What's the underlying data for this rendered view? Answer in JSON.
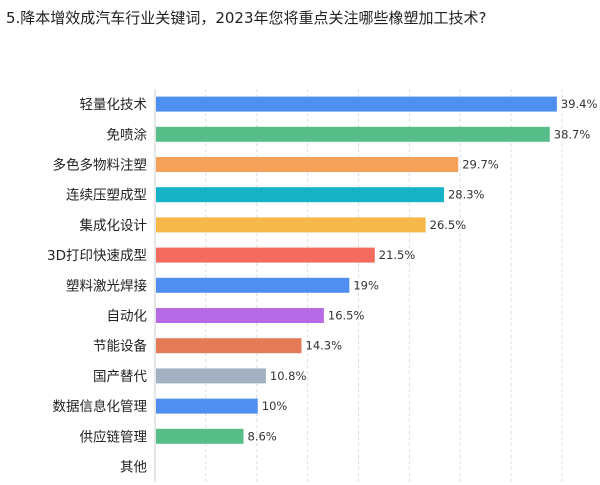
{
  "question": "5.降本增效成汽车行业关键词，2023年您将重点关注哪些橡塑加工技术?",
  "chart_data": {
    "type": "bar",
    "orientation": "horizontal",
    "title": "5.降本增效成汽车行业关键词，2023年您将重点关注哪些橡塑加工技术?",
    "categories": [
      "轻量化技术",
      "免喷涂",
      "多色多物料注塑",
      "连续压塑成型",
      "集成化设计",
      "3D打印快速成型",
      "塑料激光焊接",
      "自动化",
      "节能设备",
      "国产替代",
      "数据信息化管理",
      "供应链管理",
      "其他"
    ],
    "values": [
      39.4,
      38.7,
      29.7,
      28.3,
      26.5,
      21.5,
      19,
      16.5,
      14.3,
      10.8,
      10,
      8.6,
      null
    ],
    "value_labels": [
      "39.4%",
      "38.7%",
      "29.7%",
      "28.3%",
      "26.5%",
      "21.5%",
      "19%",
      "16.5%",
      "14.3%",
      "10.8%",
      "10%",
      "8.6%",
      ""
    ],
    "unit": "%",
    "colors": [
      "#4f8ff0",
      "#57be8a",
      "#f5a15a",
      "#17b2c6",
      "#f6b84a",
      "#f26b5e",
      "#4f8ff0",
      "#b66ae6",
      "#e57a59",
      "#a4b1c2",
      "#4f8ff0",
      "#57be8a",
      "#4f8ff0"
    ],
    "xlim": [
      0,
      40
    ],
    "grid": true,
    "legend": "none"
  }
}
